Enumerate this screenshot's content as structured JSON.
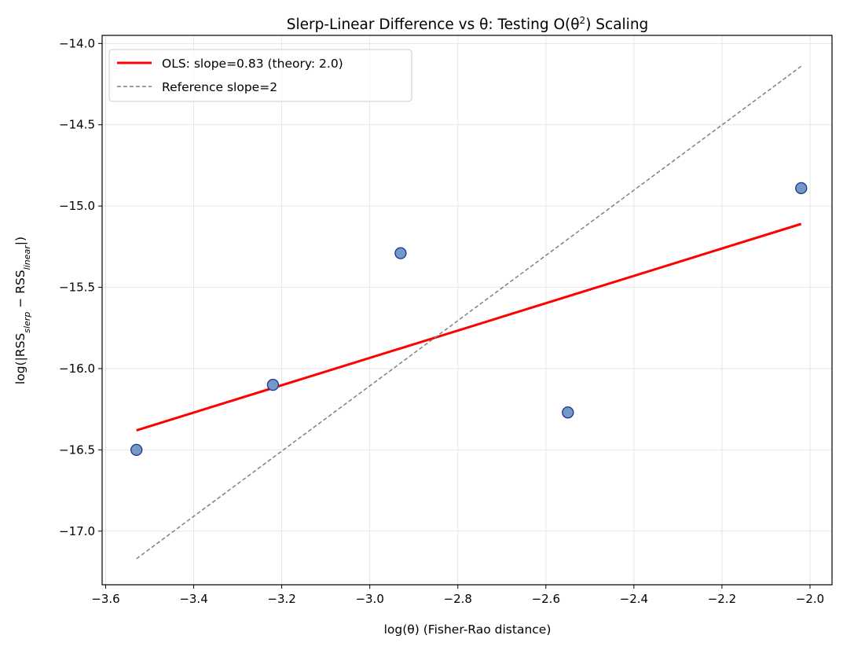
{
  "chart_data": {
    "type": "scatter",
    "title": "Slerp-Linear Difference vs θ: Testing O(θ^2) Scaling",
    "xlabel": "log(θ) (Fisher-Rao distance)",
    "ylabel": "log(|RSS_slerp − RSS_linear|)",
    "xlim": [
      -3.608,
      -1.95
    ],
    "ylim": [
      -17.33,
      -13.95
    ],
    "xticks": [
      -3.6,
      -3.4,
      -3.2,
      -3.0,
      -2.8,
      -2.6,
      -2.4,
      -2.2,
      -2.0
    ],
    "yticks": [
      -14.0,
      -14.5,
      -15.0,
      -15.5,
      -16.0,
      -16.5,
      -17.0
    ],
    "grid": true,
    "legend_position": "top-left",
    "points": {
      "x": [
        -3.53,
        -3.22,
        -2.93,
        -2.55,
        -2.02
      ],
      "y": [
        -16.5,
        -16.1,
        -15.29,
        -16.27,
        -14.89
      ],
      "color": "#7399c6",
      "edge_color": "#1f2f8f"
    },
    "series": [
      {
        "name": "OLS: slope=0.83 (theory: 2.0)",
        "x": [
          -3.53,
          -2.02
        ],
        "y": [
          -16.38,
          -15.11
        ],
        "color": "#ff0000",
        "style": "solid"
      },
      {
        "name": "Reference slope=2",
        "x": [
          -3.53,
          -2.02
        ],
        "y": [
          -17.17,
          -14.14
        ],
        "color": "#808080",
        "style": "dashed"
      }
    ]
  }
}
